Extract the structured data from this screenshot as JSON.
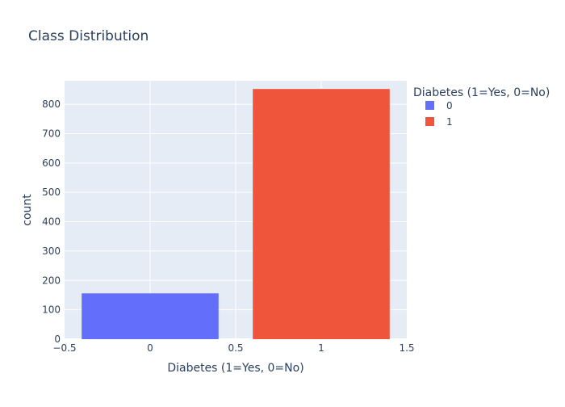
{
  "chart_data": {
    "type": "bar",
    "title": "Class Distribution",
    "xlabel": "Diabetes (1=Yes, 0=No)",
    "ylabel": "count",
    "xlim": [
      -0.5,
      1.5
    ],
    "ylim": [
      0,
      880
    ],
    "x_ticks": [
      -0.5,
      0,
      0.5,
      1,
      1.5
    ],
    "x_tick_labels": [
      "−0.5",
      "0",
      "0.5",
      "1",
      "1.5"
    ],
    "y_ticks": [
      0,
      100,
      200,
      300,
      400,
      500,
      600,
      700,
      800
    ],
    "y_tick_labels": [
      "0",
      "100",
      "200",
      "300",
      "400",
      "500",
      "600",
      "700",
      "800"
    ],
    "grid": true,
    "legend": {
      "title": "Diabetes (1=Yes, 0=No)",
      "placement": "right"
    },
    "series": [
      {
        "name": "0",
        "x": 0,
        "value": 156,
        "color": "#636efa"
      },
      {
        "name": "1",
        "x": 1,
        "value": 852,
        "color": "#ef553b"
      }
    ],
    "bar_width_data": 0.8
  }
}
